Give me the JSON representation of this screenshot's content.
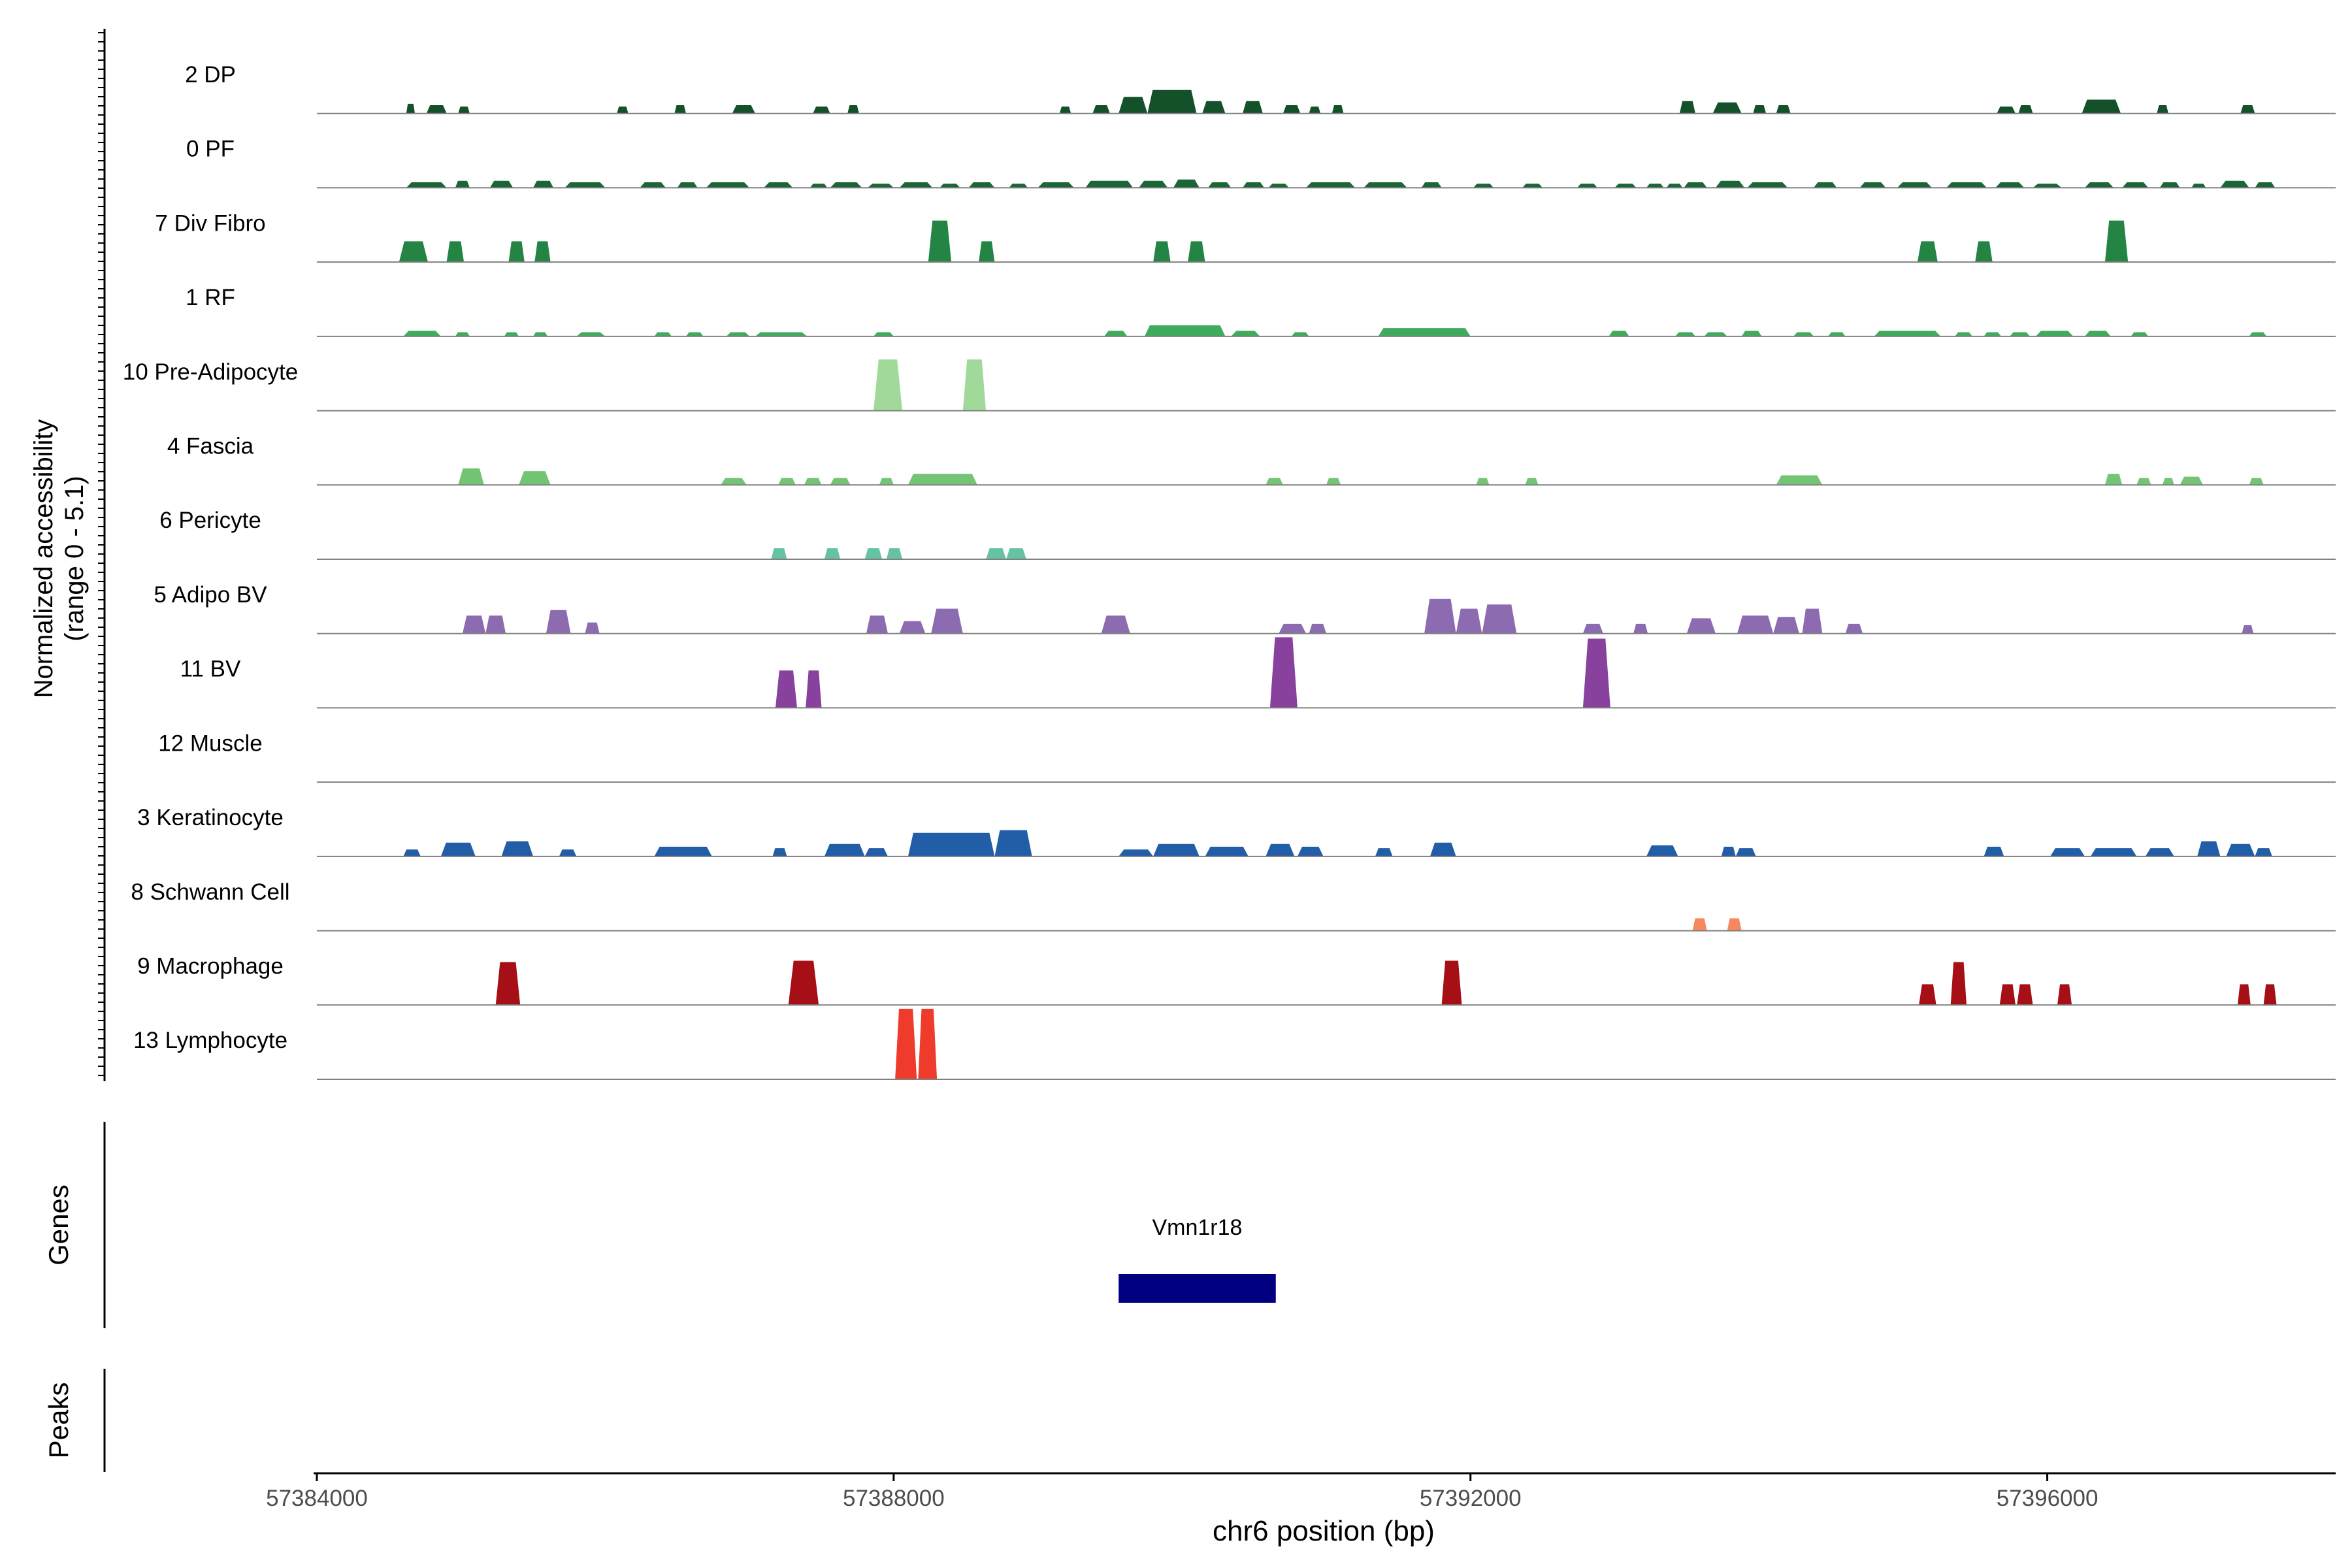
{
  "chart_data": {
    "type": "area",
    "ylabel_line1": "Normalized accessibility",
    "ylabel_line2": "(range 0 - 5.1)",
    "xlabel": "chr6 position (bp)",
    "xlim": [
      57384000,
      57398000
    ],
    "ylim": [
      0,
      5.1
    ],
    "x_ticks": [
      57384000,
      57388000,
      57392000,
      57396000
    ],
    "x_tick_labels": [
      "57384000",
      "57388000",
      "57392000",
      "57396000"
    ],
    "tracks": [
      {
        "name": "2 DP",
        "color": "#14502a",
        "peaks": [
          [
            57384620,
            57384680,
            0.7
          ],
          [
            57384760,
            57384900,
            0.6
          ],
          [
            57384980,
            57385060,
            0.5
          ],
          [
            57386080,
            57386160,
            0.5
          ],
          [
            57386480,
            57386560,
            0.6
          ],
          [
            57386880,
            57387040,
            0.6
          ],
          [
            57387440,
            57387560,
            0.5
          ],
          [
            57387680,
            57387760,
            0.6
          ],
          [
            57389150,
            57389230,
            0.5
          ],
          [
            57389380,
            57389500,
            0.6
          ],
          [
            57389560,
            57389760,
            1.2
          ],
          [
            57389760,
            57390100,
            1.7
          ],
          [
            57390140,
            57390300,
            0.9
          ],
          [
            57390420,
            57390560,
            0.9
          ],
          [
            57390700,
            57390820,
            0.6
          ],
          [
            57390880,
            57390960,
            0.5
          ],
          [
            57391040,
            57391120,
            0.6
          ],
          [
            57393450,
            57393560,
            0.9
          ],
          [
            57393680,
            57393880,
            0.8
          ],
          [
            57393960,
            57394050,
            0.6
          ],
          [
            57394120,
            57394220,
            0.6
          ],
          [
            57395650,
            57395780,
            0.5
          ],
          [
            57395800,
            57395900,
            0.6
          ],
          [
            57396240,
            57396510,
            1.0
          ],
          [
            57396760,
            57396840,
            0.6
          ],
          [
            57397340,
            57397440,
            0.6
          ]
        ]
      },
      {
        "name": "0 PF",
        "color": "#1b6636",
        "peaks": [
          [
            57384620,
            57384900,
            0.4
          ],
          [
            57384960,
            57385060,
            0.5
          ],
          [
            57385200,
            57385360,
            0.5
          ],
          [
            57385500,
            57385640,
            0.5
          ],
          [
            57385720,
            57386000,
            0.4
          ],
          [
            57386240,
            57386420,
            0.4
          ],
          [
            57386500,
            57386640,
            0.4
          ],
          [
            57386700,
            57387000,
            0.4
          ],
          [
            57387100,
            57387300,
            0.4
          ],
          [
            57387420,
            57387540,
            0.3
          ],
          [
            57387560,
            57387780,
            0.4
          ],
          [
            57387820,
            57388000,
            0.3
          ],
          [
            57388040,
            57388270,
            0.4
          ],
          [
            57388320,
            57388460,
            0.3
          ],
          [
            57388520,
            57388700,
            0.4
          ],
          [
            57388800,
            57388930,
            0.3
          ],
          [
            57389000,
            57389250,
            0.4
          ],
          [
            57389330,
            57389660,
            0.5
          ],
          [
            57389700,
            57389900,
            0.5
          ],
          [
            57389940,
            57390120,
            0.6
          ],
          [
            57390180,
            57390340,
            0.4
          ],
          [
            57390420,
            57390570,
            0.4
          ],
          [
            57390600,
            57390740,
            0.3
          ],
          [
            57390860,
            57391200,
            0.4
          ],
          [
            57391260,
            57391560,
            0.4
          ],
          [
            57391660,
            57391800,
            0.4
          ],
          [
            57392020,
            57392160,
            0.3
          ],
          [
            57392360,
            57392500,
            0.3
          ],
          [
            57392740,
            57392880,
            0.3
          ],
          [
            57393000,
            57393150,
            0.3
          ],
          [
            57393220,
            57393340,
            0.3
          ],
          [
            57393360,
            57393470,
            0.3
          ],
          [
            57393480,
            57393640,
            0.4
          ],
          [
            57393700,
            57393900,
            0.5
          ],
          [
            57393920,
            57394200,
            0.4
          ],
          [
            57394380,
            57394540,
            0.4
          ],
          [
            57394700,
            57394880,
            0.4
          ],
          [
            57394960,
            57395200,
            0.4
          ],
          [
            57395300,
            57395580,
            0.4
          ],
          [
            57395640,
            57395840,
            0.4
          ],
          [
            57395900,
            57396100,
            0.3
          ],
          [
            57396260,
            57396460,
            0.4
          ],
          [
            57396520,
            57396700,
            0.4
          ],
          [
            57396780,
            57396920,
            0.4
          ],
          [
            57397000,
            57397100,
            0.3
          ],
          [
            57397200,
            57397400,
            0.5
          ],
          [
            57397440,
            57397580,
            0.4
          ]
        ]
      },
      {
        "name": "7 Div Fibro",
        "color": "#238443",
        "peaks": [
          [
            57384570,
            57384770,
            1.5
          ],
          [
            57384900,
            57385020,
            1.5
          ],
          [
            57385330,
            57385440,
            1.5
          ],
          [
            57385510,
            57385620,
            1.5
          ],
          [
            57388240,
            57388400,
            3.0
          ],
          [
            57388590,
            57388700,
            1.5
          ],
          [
            57389800,
            57389920,
            1.5
          ],
          [
            57390040,
            57390160,
            1.5
          ],
          [
            57395100,
            57395240,
            1.5
          ],
          [
            57395500,
            57395620,
            1.5
          ],
          [
            57396400,
            57396560,
            3.0
          ]
        ]
      },
      {
        "name": "1 RF",
        "color": "#41ab5d",
        "peaks": [
          [
            57384600,
            57384860,
            0.4
          ],
          [
            57384960,
            57385060,
            0.3
          ],
          [
            57385300,
            57385400,
            0.3
          ],
          [
            57385500,
            57385600,
            0.3
          ],
          [
            57385800,
            57386000,
            0.3
          ],
          [
            57386340,
            57386460,
            0.3
          ],
          [
            57386560,
            57386680,
            0.3
          ],
          [
            57386840,
            57387000,
            0.3
          ],
          [
            57387040,
            57387400,
            0.3
          ],
          [
            57387860,
            57388000,
            0.3
          ],
          [
            57389460,
            57389620,
            0.4
          ],
          [
            57389740,
            57390300,
            0.8
          ],
          [
            57390340,
            57390540,
            0.4
          ],
          [
            57390760,
            57390880,
            0.3
          ],
          [
            57391360,
            57392000,
            0.6
          ],
          [
            57392960,
            57393100,
            0.4
          ],
          [
            57393420,
            57393560,
            0.3
          ],
          [
            57393620,
            57393780,
            0.3
          ],
          [
            57393880,
            57394020,
            0.4
          ],
          [
            57394240,
            57394380,
            0.3
          ],
          [
            57394480,
            57394600,
            0.3
          ],
          [
            57394800,
            57395260,
            0.4
          ],
          [
            57395360,
            57395480,
            0.3
          ],
          [
            57395560,
            57395680,
            0.3
          ],
          [
            57395740,
            57395880,
            0.3
          ],
          [
            57395920,
            57396180,
            0.4
          ],
          [
            57396260,
            57396440,
            0.4
          ],
          [
            57396580,
            57396700,
            0.3
          ],
          [
            57397400,
            57397520,
            0.3
          ]
        ]
      },
      {
        "name": "10 Pre-Adipocyte",
        "color": "#a1d99b",
        "peaks": [
          [
            57387860,
            57388060,
            3.7
          ],
          [
            57388480,
            57388640,
            3.7
          ]
        ]
      },
      {
        "name": "4 Fascia",
        "color": "#74c476",
        "peaks": [
          [
            57384980,
            57385160,
            1.2
          ],
          [
            57385400,
            57385620,
            1.0
          ],
          [
            57386800,
            57386980,
            0.5
          ],
          [
            57387200,
            57387320,
            0.5
          ],
          [
            57387380,
            57387500,
            0.5
          ],
          [
            57387560,
            57387700,
            0.5
          ],
          [
            57387900,
            57388000,
            0.5
          ],
          [
            57388100,
            57388580,
            0.8
          ],
          [
            57390580,
            57390700,
            0.5
          ],
          [
            57391000,
            57391100,
            0.5
          ],
          [
            57392040,
            57392130,
            0.5
          ],
          [
            57392380,
            57392470,
            0.5
          ],
          [
            57394120,
            57394440,
            0.7
          ],
          [
            57396400,
            57396520,
            0.8
          ],
          [
            57396620,
            57396720,
            0.5
          ],
          [
            57396800,
            57396880,
            0.5
          ],
          [
            57396920,
            57397080,
            0.6
          ],
          [
            57397400,
            57397500,
            0.5
          ]
        ]
      },
      {
        "name": "6 Pericyte",
        "color": "#66c2a4",
        "peaks": [
          [
            57387150,
            57387260,
            0.8
          ],
          [
            57387520,
            57387630,
            0.8
          ],
          [
            57387800,
            57387920,
            0.8
          ],
          [
            57387950,
            57388060,
            0.8
          ],
          [
            57388640,
            57388780,
            0.8
          ],
          [
            57388780,
            57388920,
            0.8
          ]
        ]
      },
      {
        "name": "5 Adipo BV",
        "color": "#8c6bb1",
        "peaks": [
          [
            57385010,
            57385170,
            1.3
          ],
          [
            57385170,
            57385310,
            1.3
          ],
          [
            57385590,
            57385760,
            1.7
          ],
          [
            57385860,
            57385960,
            0.8
          ],
          [
            57387810,
            57387960,
            1.3
          ],
          [
            57388040,
            57388220,
            0.9
          ],
          [
            57388260,
            57388480,
            1.8
          ],
          [
            57389440,
            57389640,
            1.3
          ],
          [
            57390670,
            57390860,
            0.7
          ],
          [
            57390880,
            57391000,
            0.7
          ],
          [
            57391680,
            57391900,
            2.5
          ],
          [
            57391900,
            57392080,
            1.8
          ],
          [
            57392080,
            57392320,
            2.1
          ],
          [
            57392780,
            57392920,
            0.7
          ],
          [
            57393130,
            57393230,
            0.7
          ],
          [
            57393500,
            57393700,
            1.1
          ],
          [
            57393850,
            57394100,
            1.3
          ],
          [
            57394100,
            57394280,
            1.2
          ],
          [
            57394300,
            57394440,
            1.8
          ],
          [
            57394600,
            57394720,
            0.7
          ],
          [
            57397350,
            57397430,
            0.6
          ]
        ]
      },
      {
        "name": "11 BV",
        "color": "#88419d",
        "peaks": [
          [
            57387180,
            57387330,
            2.7
          ],
          [
            57387390,
            57387500,
            2.7
          ],
          [
            57390610,
            57390800,
            5.1
          ],
          [
            57392780,
            57392970,
            5.0
          ]
        ]
      },
      {
        "name": "12 Muscle",
        "color": "#6a51a3",
        "peaks": []
      },
      {
        "name": "3 Keratinocyte",
        "color": "#225ea8",
        "peaks": [
          [
            57384600,
            57384720,
            0.5
          ],
          [
            57384860,
            57385100,
            1.0
          ],
          [
            57385280,
            57385500,
            1.1
          ],
          [
            57385680,
            57385800,
            0.5
          ],
          [
            57386340,
            57386740,
            0.7
          ],
          [
            57387160,
            57387260,
            0.6
          ],
          [
            57387520,
            57387800,
            0.9
          ],
          [
            57387800,
            57387960,
            0.6
          ],
          [
            57388100,
            57388700,
            1.7
          ],
          [
            57388700,
            57388960,
            1.9
          ],
          [
            57389560,
            57389800,
            0.5
          ],
          [
            57389800,
            57390120,
            0.9
          ],
          [
            57390160,
            57390460,
            0.7
          ],
          [
            57390580,
            57390780,
            0.9
          ],
          [
            57390800,
            57390980,
            0.7
          ],
          [
            57391340,
            57391460,
            0.6
          ],
          [
            57391720,
            57391900,
            1.0
          ],
          [
            57393220,
            57393440,
            0.8
          ],
          [
            57393740,
            57393840,
            0.7
          ],
          [
            57393840,
            57393980,
            0.6
          ],
          [
            57395560,
            57395700,
            0.7
          ],
          [
            57396020,
            57396260,
            0.6
          ],
          [
            57396300,
            57396620,
            0.6
          ],
          [
            57396680,
            57396880,
            0.6
          ],
          [
            57397040,
            57397200,
            1.1
          ],
          [
            57397240,
            57397440,
            0.9
          ],
          [
            57397440,
            57397560,
            0.6
          ]
        ]
      },
      {
        "name": "8 Schwann Cell",
        "color": "#f4895f",
        "peaks": [
          [
            57393540,
            57393640,
            0.9
          ],
          [
            57393780,
            57393880,
            0.9
          ]
        ]
      },
      {
        "name": "9 Macrophage",
        "color": "#a50f15",
        "peaks": [
          [
            57385240,
            57385410,
            3.1
          ],
          [
            57387270,
            57387480,
            3.2
          ],
          [
            57391800,
            57391940,
            3.2
          ],
          [
            57395110,
            57395230,
            1.5
          ],
          [
            57395330,
            57395440,
            3.1
          ],
          [
            57395670,
            57395780,
            1.5
          ],
          [
            57395790,
            57395900,
            1.5
          ],
          [
            57396070,
            57396170,
            1.5
          ],
          [
            57397320,
            57397410,
            1.5
          ],
          [
            57397500,
            57397590,
            1.5
          ]
        ]
      },
      {
        "name": "13 Lymphocyte",
        "color": "#ef3b2c",
        "peaks": [
          [
            57388010,
            57388160,
            5.1
          ],
          [
            57388170,
            57388300,
            5.1
          ]
        ]
      }
    ],
    "gene_track_label": "Genes",
    "genes": [
      {
        "name": "Vmn1r18",
        "start": 57389560,
        "end": 57390650,
        "color": "#000080"
      }
    ],
    "peaks_track_label": "Peaks"
  }
}
